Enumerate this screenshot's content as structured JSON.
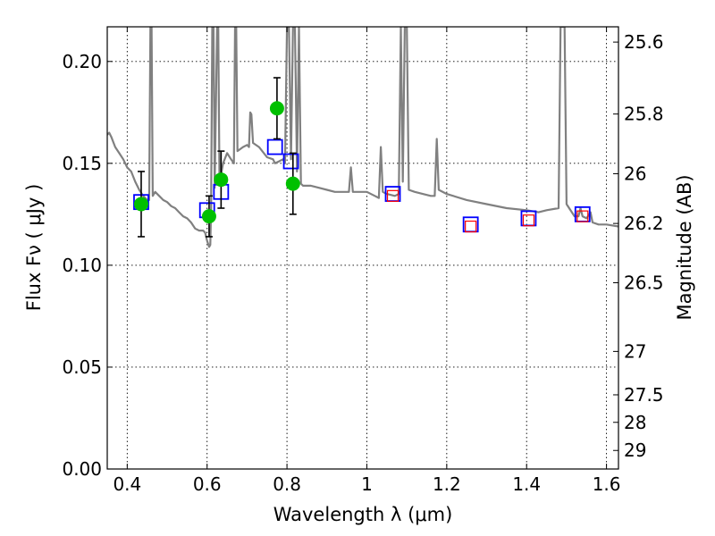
{
  "chart_data": {
    "type": "scatter",
    "xlabel": "Wavelength  λ (μm)",
    "ylabel": "Flux  Fν  ( μJy )",
    "y2label": "Magnitude (AB)",
    "xlim": [
      0.35,
      1.63
    ],
    "ylim": [
      0.0,
      0.217
    ],
    "grid": true,
    "x_ticks": [
      0.4,
      0.6,
      0.8,
      1.0,
      1.2,
      1.4,
      1.6
    ],
    "x_tick_labels": [
      "0.4",
      "0.6",
      "0.8",
      "1",
      "1.2",
      "1.4",
      "1.6"
    ],
    "y_ticks": [
      0.0,
      0.05,
      0.1,
      0.15,
      0.2
    ],
    "y_tick_labels": [
      "0.00",
      "0.05",
      "0.10",
      "0.15",
      "0.20"
    ],
    "y2_ticks": [
      {
        "label": "25.6",
        "flux": 0.2095
      },
      {
        "label": "25.8",
        "flux": 0.1742
      },
      {
        "label": "26",
        "flux": 0.1449
      },
      {
        "label": "26.2",
        "flux": 0.1205
      },
      {
        "label": "26.5",
        "flux": 0.0914
      },
      {
        "label": "27",
        "flux": 0.0577
      },
      {
        "label": "27.5",
        "flux": 0.0364
      },
      {
        "label": "28",
        "flux": 0.0229
      },
      {
        "label": "29",
        "flux": 0.0091
      }
    ],
    "series": [
      {
        "type": "line",
        "color": "#808080",
        "points": [
          [
            0.35,
            0.164
          ],
          [
            0.355,
            0.165
          ],
          [
            0.36,
            0.163
          ],
          [
            0.37,
            0.158
          ],
          [
            0.38,
            0.155
          ],
          [
            0.39,
            0.152
          ],
          [
            0.4,
            0.148
          ],
          [
            0.41,
            0.146
          ],
          [
            0.42,
            0.141
          ],
          [
            0.43,
            0.137
          ],
          [
            0.44,
            0.134
          ],
          [
            0.45,
            0.132
          ],
          [
            0.455,
            0.132
          ],
          [
            0.458,
            0.217
          ],
          [
            0.461,
            0.217
          ],
          [
            0.464,
            0.134
          ],
          [
            0.47,
            0.136
          ],
          [
            0.48,
            0.134
          ],
          [
            0.49,
            0.132
          ],
          [
            0.5,
            0.131
          ],
          [
            0.51,
            0.129
          ],
          [
            0.52,
            0.128
          ],
          [
            0.53,
            0.126
          ],
          [
            0.54,
            0.124
          ],
          [
            0.55,
            0.123
          ],
          [
            0.56,
            0.121
          ],
          [
            0.57,
            0.118
          ],
          [
            0.58,
            0.117
          ],
          [
            0.59,
            0.117
          ],
          [
            0.595,
            0.116
          ],
          [
            0.6,
            0.112
          ],
          [
            0.605,
            0.109
          ],
          [
            0.608,
            0.11
          ],
          [
            0.61,
            0.128
          ],
          [
            0.613,
            0.217
          ],
          [
            0.616,
            0.217
          ],
          [
            0.619,
            0.138
          ],
          [
            0.625,
            0.217
          ],
          [
            0.628,
            0.217
          ],
          [
            0.631,
            0.14
          ],
          [
            0.64,
            0.15
          ],
          [
            0.65,
            0.155
          ],
          [
            0.66,
            0.152
          ],
          [
            0.667,
            0.15
          ],
          [
            0.67,
            0.217
          ],
          [
            0.673,
            0.217
          ],
          [
            0.676,
            0.156
          ],
          [
            0.69,
            0.158
          ],
          [
            0.7,
            0.159
          ],
          [
            0.705,
            0.158
          ],
          [
            0.708,
            0.175
          ],
          [
            0.711,
            0.174
          ],
          [
            0.715,
            0.16
          ],
          [
            0.73,
            0.158
          ],
          [
            0.75,
            0.153
          ],
          [
            0.765,
            0.152
          ],
          [
            0.77,
            0.15
          ],
          [
            0.78,
            0.151
          ],
          [
            0.79,
            0.152
          ],
          [
            0.795,
            0.15
          ],
          [
            0.8,
            0.217
          ],
          [
            0.805,
            0.217
          ],
          [
            0.81,
            0.152
          ],
          [
            0.815,
            0.217
          ],
          [
            0.82,
            0.217
          ],
          [
            0.825,
            0.146
          ],
          [
            0.83,
            0.217
          ],
          [
            0.835,
            0.14
          ],
          [
            0.84,
            0.139
          ],
          [
            0.86,
            0.139
          ],
          [
            0.88,
            0.138
          ],
          [
            0.9,
            0.137
          ],
          [
            0.92,
            0.136
          ],
          [
            0.94,
            0.136
          ],
          [
            0.955,
            0.136
          ],
          [
            0.96,
            0.148
          ],
          [
            0.965,
            0.136
          ],
          [
            0.98,
            0.136
          ],
          [
            1.0,
            0.136
          ],
          [
            1.02,
            0.134
          ],
          [
            1.03,
            0.133
          ],
          [
            1.035,
            0.158
          ],
          [
            1.04,
            0.136
          ],
          [
            1.05,
            0.135
          ],
          [
            1.07,
            0.134
          ],
          [
            1.08,
            0.135
          ],
          [
            1.085,
            0.217
          ],
          [
            1.09,
            0.141
          ],
          [
            1.095,
            0.217
          ],
          [
            1.1,
            0.217
          ],
          [
            1.105,
            0.137
          ],
          [
            1.12,
            0.136
          ],
          [
            1.14,
            0.135
          ],
          [
            1.16,
            0.134
          ],
          [
            1.17,
            0.134
          ],
          [
            1.175,
            0.162
          ],
          [
            1.18,
            0.137
          ],
          [
            1.2,
            0.135
          ],
          [
            1.25,
            0.132
          ],
          [
            1.3,
            0.13
          ],
          [
            1.35,
            0.128
          ],
          [
            1.4,
            0.127
          ],
          [
            1.43,
            0.126
          ],
          [
            1.45,
            0.127
          ],
          [
            1.48,
            0.128
          ],
          [
            1.485,
            0.217
          ],
          [
            1.495,
            0.217
          ],
          [
            1.5,
            0.13
          ],
          [
            1.52,
            0.124
          ],
          [
            1.53,
            0.124
          ],
          [
            1.535,
            0.128
          ],
          [
            1.54,
            0.124
          ],
          [
            1.55,
            0.123
          ],
          [
            1.56,
            0.126
          ],
          [
            1.565,
            0.121
          ],
          [
            1.58,
            0.12
          ],
          [
            1.6,
            0.12
          ],
          [
            1.63,
            0.119
          ]
        ]
      },
      {
        "type": "scatter",
        "marker": "filled-circle",
        "color": "#00c000",
        "points": [
          {
            "x": 0.435,
            "y": 0.13,
            "yerr": 0.016
          },
          {
            "x": 0.605,
            "y": 0.124,
            "yerr": 0.01
          },
          {
            "x": 0.635,
            "y": 0.142,
            "yerr": 0.014
          },
          {
            "x": 0.775,
            "y": 0.177,
            "yerr": 0.015
          },
          {
            "x": 0.815,
            "y": 0.14,
            "yerr": 0.015
          }
        ]
      },
      {
        "type": "scatter",
        "marker": "open-square",
        "color": "#0000ff",
        "points": [
          {
            "x": 0.435,
            "y": 0.131
          },
          {
            "x": 0.6,
            "y": 0.127
          },
          {
            "x": 0.635,
            "y": 0.136
          },
          {
            "x": 0.77,
            "y": 0.158
          },
          {
            "x": 0.81,
            "y": 0.151
          },
          {
            "x": 1.065,
            "y": 0.135
          },
          {
            "x": 1.26,
            "y": 0.12
          },
          {
            "x": 1.405,
            "y": 0.123
          },
          {
            "x": 1.54,
            "y": 0.125
          }
        ]
      },
      {
        "type": "scatter",
        "marker": "open-square-small",
        "color": "#ff0000",
        "points": [
          {
            "x": 1.065,
            "y": 0.134
          },
          {
            "x": 1.26,
            "y": 0.119
          },
          {
            "x": 1.405,
            "y": 0.122
          },
          {
            "x": 1.54,
            "y": 0.124
          }
        ]
      }
    ]
  }
}
